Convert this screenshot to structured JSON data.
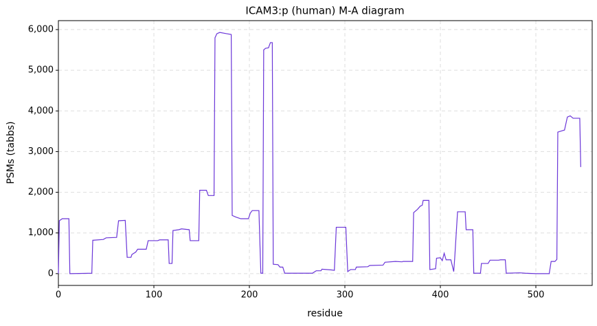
{
  "chart_data": {
    "type": "line",
    "title": "ICAM3:p (human) M-A diagram",
    "x_label": "residue",
    "y_label": "PSMs (tabbs)",
    "xlim": [
      0,
      559
    ],
    "ylim": [
      -290,
      6220
    ],
    "xticks": [
      0,
      100,
      200,
      300,
      400,
      500
    ],
    "yticks": [
      0,
      {
        "value": 1000,
        "label": "1,000"
      },
      {
        "value": 2000,
        "label": "2,000"
      },
      {
        "value": 3000,
        "label": "3,000"
      },
      {
        "value": 4000,
        "label": "4,000"
      },
      {
        "value": 5000,
        "label": "5,000"
      },
      {
        "value": 6000,
        "label": "6,000"
      }
    ],
    "grid": true,
    "series": [
      {
        "color": "#6a35d8",
        "x": [
          0,
          1,
          4,
          11,
          12,
          35,
          36,
          47,
          50,
          61,
          63,
          70,
          72,
          76,
          77,
          81,
          83,
          92,
          94,
          104,
          106,
          115,
          116,
          119,
          120,
          126,
          129,
          137,
          138,
          147,
          148,
          155,
          157,
          163,
          164,
          166,
          169,
          176,
          181,
          182,
          186,
          191,
          199,
          201,
          203,
          210,
          212,
          214,
          215,
          217,
          220,
          222,
          224,
          225,
          230,
          232,
          235,
          237,
          266,
          270,
          275,
          276,
          286,
          289,
          291,
          301,
          303,
          306,
          311,
          312,
          324,
          326,
          340,
          342,
          353,
          360,
          361,
          371,
          372,
          376,
          379,
          381,
          382,
          388,
          389,
          395,
          396,
          400,
          402,
          404,
          406,
          411,
          414,
          415,
          418,
          426,
          427,
          434,
          435,
          442,
          443,
          450,
          452,
          461,
          463,
          468,
          469,
          483,
          489,
          500,
          514,
          516,
          520,
          522,
          523,
          527,
          530,
          533,
          536,
          539,
          546,
          547
        ],
        "values": [
          0,
          1300,
          1350,
          1350,
          0,
          10,
          820,
          840,
          880,
          890,
          1300,
          1310,
          400,
          400,
          470,
          530,
          600,
          600,
          810,
          810,
          830,
          830,
          250,
          250,
          1060,
          1080,
          1100,
          1080,
          810,
          810,
          2050,
          2050,
          1920,
          1920,
          5800,
          5900,
          5930,
          5900,
          5880,
          1430,
          1390,
          1350,
          1350,
          1490,
          1550,
          1550,
          10,
          10,
          5500,
          5540,
          5550,
          5680,
          5680,
          230,
          220,
          160,
          160,
          10,
          10,
          70,
          70,
          110,
          90,
          80,
          1140,
          1140,
          50,
          100,
          100,
          160,
          170,
          200,
          210,
          280,
          300,
          290,
          300,
          300,
          1500,
          1580,
          1660,
          1680,
          1800,
          1800,
          100,
          120,
          380,
          390,
          320,
          500,
          340,
          340,
          50,
          370,
          1520,
          1520,
          1080,
          1080,
          10,
          10,
          250,
          250,
          330,
          330,
          340,
          340,
          10,
          20,
          10,
          0,
          0,
          300,
          300,
          350,
          3480,
          3510,
          3530,
          3850,
          3880,
          3820,
          3820,
          2620
        ]
      }
    ]
  }
}
